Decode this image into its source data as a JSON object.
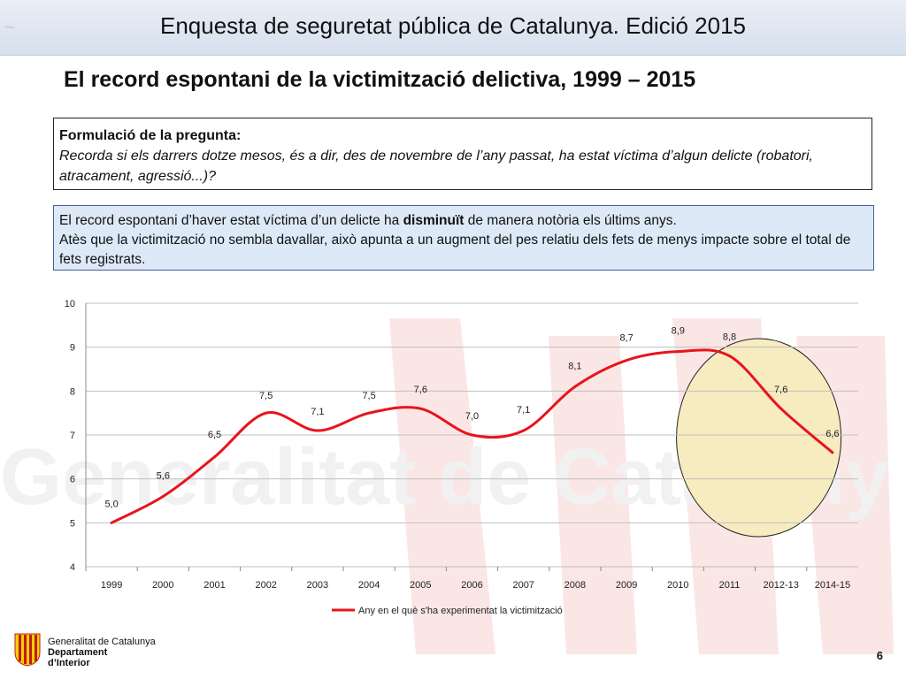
{
  "header": {
    "title": "Enquesta de seguretat pública de Catalunya. Edició 2015"
  },
  "slide": {
    "title": "El record espontani de la victimització delictiva, 1999 – 2015"
  },
  "question_box": {
    "heading": "Formulació de la pregunta:",
    "text": "Recorda si els darrers dotze mesos, és a dir, des de novembre de l’any passat, ha estat víctima d’algun delicte (robatori, atracament, agressió...)?"
  },
  "info_box": {
    "text_before": "El record espontani d’haver estat víctima d’un delicte ha ",
    "bold": "disminuït",
    "text_after": " de manera notòria els últims anys.",
    "line2": "Atès que la victimització no sembla davallar, això apunta a un augment del pes relatiu dels fets de menys impacte sobre el total de fets registrats."
  },
  "chart_data": {
    "type": "line",
    "categories": [
      "1999",
      "2000",
      "2001",
      "2002",
      "2003",
      "2004",
      "2005",
      "2006",
      "2007",
      "2008",
      "2009",
      "2010",
      "2011",
      "2012-13",
      "2014-15"
    ],
    "series": [
      {
        "name": "Any en el què s'ha experimentat la victimització",
        "values": [
          5.0,
          5.6,
          6.5,
          7.5,
          7.1,
          7.5,
          7.6,
          7.0,
          7.1,
          8.1,
          8.7,
          8.9,
          8.8,
          7.6,
          6.6
        ],
        "labels": [
          "5,0",
          "5,6",
          "6,5",
          "7,5",
          "7,1",
          "7,5",
          "7,6",
          "7,0",
          "7,1",
          "8,1",
          "8,7",
          "8,9",
          "8,8",
          "7,6",
          "6,6"
        ]
      }
    ],
    "ylim": [
      4,
      10
    ],
    "yticks": [
      "4",
      "5",
      "6",
      "7",
      "8",
      "9",
      "10"
    ],
    "grid": true,
    "legend": "bottom",
    "colors": {
      "line": "#e8141c",
      "circle_fill": "#f7ebc0",
      "grid": "#bfbfbf"
    }
  },
  "footer": {
    "org": "Generalitat de Catalunya",
    "dept1": "Departament",
    "dept2": "d’Interior",
    "page_number": "6"
  }
}
